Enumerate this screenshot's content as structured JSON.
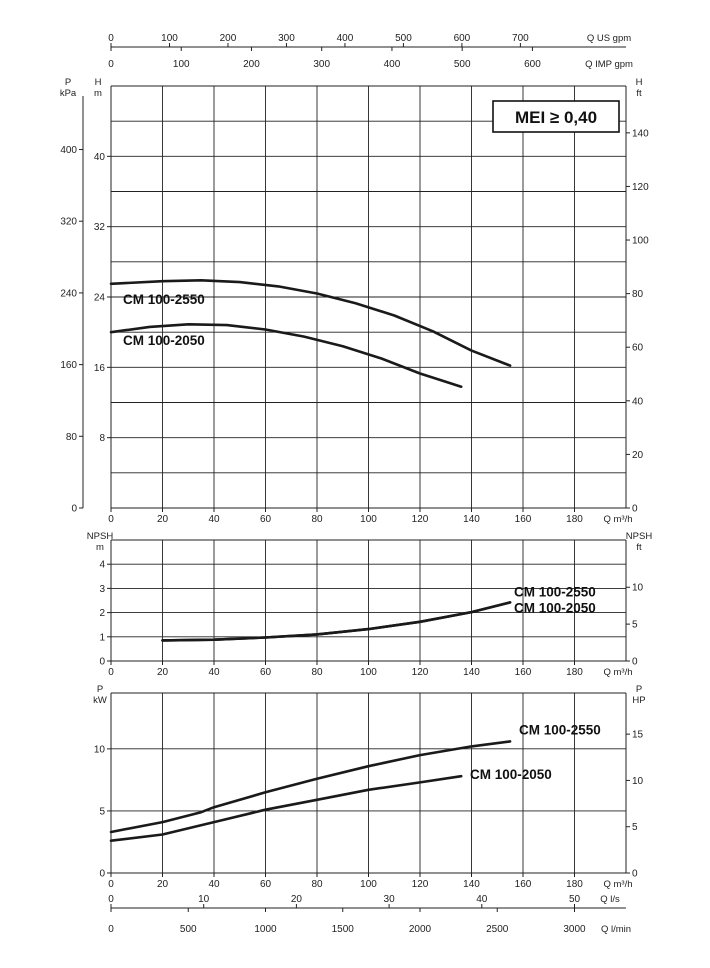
{
  "colors": {
    "line": "#1a1a1a",
    "grid": "#222222",
    "background": "#ffffff"
  },
  "top_axes": {
    "us_gpm": {
      "unit": "Q US gpm",
      "ticks": [
        0,
        100,
        200,
        300,
        400,
        500,
        600,
        700
      ]
    },
    "imp_gpm": {
      "unit": "Q IMP gpm",
      "ticks": [
        0,
        100,
        200,
        300,
        400,
        500,
        600
      ]
    }
  },
  "bottom_axes": {
    "m3h": {
      "unit": "Q m³/h",
      "ticks": [
        0,
        20,
        40,
        60,
        80,
        100,
        120,
        140,
        160,
        180
      ]
    },
    "ls": {
      "unit": "Q l/s",
      "ticks": [
        0,
        10,
        20,
        30,
        40,
        50
      ]
    },
    "lmin": {
      "unit": "Q l/min",
      "ticks": [
        0,
        500,
        1000,
        1500,
        2000,
        2500,
        3000
      ]
    }
  },
  "badge": {
    "text": "MEI ≥ 0,40"
  },
  "chart_data": [
    {
      "type": "line",
      "panel": "head",
      "x_unit": "Q m³/h",
      "xlim": [
        0,
        200
      ],
      "ylim": [
        0,
        48
      ],
      "left_axis": {
        "unit_top": "H",
        "unit_bottom": "m",
        "ticks": [
          8,
          16,
          24,
          32,
          40
        ]
      },
      "pressure_axis": {
        "unit_top": "P",
        "unit_bottom": "kPa",
        "ticks": [
          0,
          80,
          160,
          240,
          320,
          400
        ]
      },
      "right_axis": {
        "unit_top": "H",
        "unit_bottom": "ft",
        "ticks": [
          0,
          20,
          40,
          60,
          80,
          100,
          120,
          140
        ]
      },
      "x_ticks": [
        0,
        20,
        40,
        60,
        80,
        100,
        120,
        140,
        160,
        180
      ],
      "grid": true,
      "series": [
        {
          "name": "CM 100-2550",
          "x": [
            0,
            20,
            35,
            50,
            65,
            80,
            95,
            110,
            125,
            140,
            155
          ],
          "y": [
            25.5,
            25.8,
            25.9,
            25.7,
            25.2,
            24.4,
            23.3,
            21.9,
            20.1,
            17.9,
            16.2
          ]
        },
        {
          "name": "CM 100-2050",
          "x": [
            0,
            15,
            30,
            45,
            60,
            75,
            90,
            105,
            120,
            136
          ],
          "y": [
            20.0,
            20.6,
            20.9,
            20.8,
            20.3,
            19.5,
            18.4,
            17.0,
            15.3,
            13.8
          ]
        }
      ]
    },
    {
      "type": "line",
      "panel": "npsh",
      "x_unit": "Q m³/h",
      "xlim": [
        0,
        200
      ],
      "ylim": [
        0,
        5
      ],
      "left_axis": {
        "unit_top": "NPSH",
        "unit_bottom": "m",
        "ticks": [
          0,
          1,
          2,
          3,
          4
        ]
      },
      "right_axis": {
        "unit_top": "NPSH",
        "unit_bottom": "ft",
        "ticks": [
          0,
          5,
          10
        ]
      },
      "x_ticks": [
        0,
        20,
        40,
        60,
        80,
        100,
        120,
        140,
        160,
        180
      ],
      "grid": true,
      "series": [
        {
          "name": "CM 100-2550",
          "x": [
            20,
            40,
            60,
            80,
            100,
            120,
            140,
            155
          ],
          "y": [
            0.85,
            0.88,
            0.97,
            1.1,
            1.32,
            1.62,
            2.02,
            2.42
          ]
        },
        {
          "name": "CM 100-2050",
          "x": [
            20,
            40,
            60,
            80,
            100,
            120,
            140,
            155
          ],
          "y": [
            0.85,
            0.88,
            0.97,
            1.1,
            1.32,
            1.62,
            2.02,
            2.42
          ]
        }
      ]
    },
    {
      "type": "line",
      "panel": "power",
      "x_unit": "Q m³/h",
      "xlim": [
        0,
        200
      ],
      "ylim": [
        0,
        14.5
      ],
      "left_axis": {
        "unit_top": "P",
        "unit_bottom": "kW",
        "ticks": [
          0,
          5,
          10
        ]
      },
      "right_axis": {
        "unit_top": "P",
        "unit_bottom": "HP",
        "ticks": [
          0,
          5,
          10,
          15
        ]
      },
      "x_ticks": [
        0,
        20,
        40,
        60,
        80,
        100,
        120,
        140,
        160,
        180
      ],
      "grid": true,
      "series": [
        {
          "name": "CM 100-2550",
          "x": [
            0,
            20,
            35,
            40,
            60,
            80,
            100,
            120,
            140,
            155
          ],
          "y": [
            3.3,
            4.1,
            4.9,
            5.3,
            6.5,
            7.6,
            8.6,
            9.5,
            10.2,
            10.6
          ]
        },
        {
          "name": "CM 100-2050",
          "x": [
            0,
            20,
            40,
            60,
            80,
            100,
            120,
            136
          ],
          "y": [
            2.6,
            3.1,
            4.1,
            5.1,
            5.9,
            6.7,
            7.3,
            7.8
          ]
        }
      ]
    }
  ]
}
